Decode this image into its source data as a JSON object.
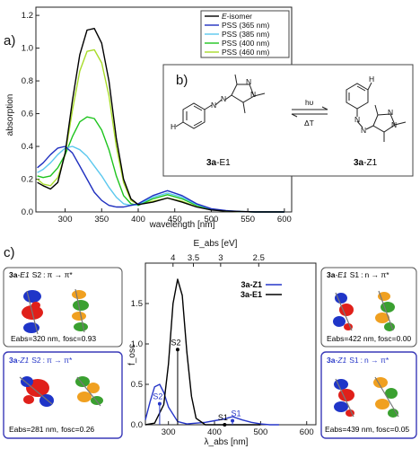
{
  "panel_a": {
    "label": "a)",
    "ylabel": "absorption",
    "xlabel": "wavelength [nm]",
    "legend_isomer_prefix": "E",
    "legend_isomer_suffix": "-isomer",
    "legend": [
      "PSS (365 nm)",
      "PSS (385 nm)",
      "PSS (400 nm)",
      "PSS (460 nm)"
    ]
  },
  "panel_b": {
    "label": "b)",
    "arrow_top": "hυ",
    "arrow_bottom": "ΔT",
    "left_name_bold": "3a",
    "left_name_rest": "-E1",
    "right_name_bold": "3a",
    "right_name_rest": "-Z1",
    "atom_h": "H",
    "atom_n": "N"
  },
  "panel_c": {
    "label": "c)",
    "top_axis_label": "E_abs [eV]",
    "top_ticks": [
      "4",
      "3.5",
      "3",
      "2.5"
    ],
    "ylabel": "f_osc",
    "xlabel": "λ_abs [nm]",
    "legend": [
      "3a-Z1",
      "3a-E1"
    ],
    "peak_labels": [
      "S2",
      "S2",
      "S1",
      "S1"
    ],
    "cards": [
      {
        "compound": "3a",
        "isomer": "-E1",
        "state": "S2",
        "transition": "π → π*",
        "energy": "Eabs=320 nm,",
        "osc": "fosc=0.93"
      },
      {
        "compound": "3a",
        "isomer": "-Z1",
        "state": "S2",
        "transition": "π → π*",
        "energy": "Eabs=281 nm,",
        "osc": "fosc=0.26"
      },
      {
        "compound": "3a",
        "isomer": "-E1",
        "state": "S1",
        "transition": "n → π*",
        "energy": "Eabs=422 nm,",
        "osc": "fosc=0.00"
      },
      {
        "compound": "3a",
        "isomer": "-Z1",
        "state": "S1",
        "transition": "n → π*",
        "energy": "Eabs=439 nm,",
        "osc": "fosc=0.05"
      }
    ]
  },
  "colors": {
    "E": "#000000",
    "pss365": "#1f2fbf",
    "pss385": "#5bc8ee",
    "pss400": "#1ec41e",
    "pss460": "#a8dc2a",
    "Z": "#2636c8"
  },
  "chart_data": [
    {
      "type": "line",
      "xlabel": "wavelength [nm]",
      "ylabel": "absorption",
      "xlim": [
        260,
        610
      ],
      "ylim": [
        0,
        1.25
      ],
      "x_ticks": [
        300,
        350,
        400,
        450,
        500,
        550,
        600
      ],
      "y_ticks": [
        0.0,
        0.2,
        0.4,
        0.6,
        0.8,
        1.0,
        1.2
      ],
      "legend_position": "top-right",
      "series": [
        {
          "name": "E-isomer",
          "color": "#000000",
          "x": [
            262,
            270,
            280,
            290,
            300,
            310,
            320,
            330,
            340,
            350,
            360,
            370,
            380,
            390,
            400,
            420,
            440,
            460,
            480,
            500,
            520,
            540,
            560,
            580,
            600
          ],
          "y": [
            0.18,
            0.16,
            0.14,
            0.18,
            0.36,
            0.68,
            0.96,
            1.11,
            1.12,
            1.03,
            0.8,
            0.45,
            0.2,
            0.08,
            0.045,
            0.06,
            0.085,
            0.06,
            0.03,
            0.012,
            0.005,
            0.002,
            0.0,
            0.0,
            0.0
          ]
        },
        {
          "name": "PSS (365 nm)",
          "color": "#1f2fbf",
          "x": [
            262,
            270,
            280,
            290,
            300,
            310,
            320,
            330,
            340,
            350,
            360,
            370,
            380,
            390,
            400,
            420,
            440,
            460,
            480,
            500,
            520,
            540,
            560,
            580,
            600
          ],
          "y": [
            0.27,
            0.3,
            0.35,
            0.39,
            0.4,
            0.36,
            0.28,
            0.2,
            0.12,
            0.07,
            0.04,
            0.03,
            0.03,
            0.04,
            0.05,
            0.1,
            0.13,
            0.1,
            0.05,
            0.02,
            0.008,
            0.003,
            0.0,
            0.0,
            0.0
          ]
        },
        {
          "name": "PSS (385 nm)",
          "color": "#5bc8ee",
          "x": [
            262,
            270,
            280,
            290,
            300,
            310,
            320,
            330,
            340,
            350,
            360,
            370,
            380,
            390,
            400,
            420,
            440,
            460,
            480,
            500,
            520,
            540,
            560,
            580,
            600
          ],
          "y": [
            0.24,
            0.26,
            0.3,
            0.35,
            0.39,
            0.4,
            0.38,
            0.34,
            0.28,
            0.22,
            0.15,
            0.09,
            0.05,
            0.04,
            0.045,
            0.09,
            0.115,
            0.09,
            0.045,
            0.018,
            0.007,
            0.002,
            0.0,
            0.0,
            0.0
          ]
        },
        {
          "name": "PSS (400 nm)",
          "color": "#1ec41e",
          "x": [
            262,
            270,
            280,
            290,
            300,
            310,
            320,
            330,
            340,
            350,
            360,
            370,
            380,
            390,
            400,
            420,
            440,
            460,
            480,
            500,
            520,
            540,
            560,
            580,
            600
          ],
          "y": [
            0.22,
            0.21,
            0.22,
            0.27,
            0.35,
            0.46,
            0.55,
            0.58,
            0.57,
            0.5,
            0.38,
            0.22,
            0.1,
            0.05,
            0.04,
            0.08,
            0.105,
            0.08,
            0.04,
            0.016,
            0.006,
            0.002,
            0.0,
            0.0,
            0.0
          ]
        },
        {
          "name": "PSS (460 nm)",
          "color": "#a8dc2a",
          "x": [
            262,
            270,
            280,
            290,
            300,
            310,
            320,
            330,
            340,
            350,
            360,
            370,
            380,
            390,
            400,
            420,
            440,
            460,
            480,
            500,
            520,
            540,
            560,
            580,
            600
          ],
          "y": [
            0.2,
            0.17,
            0.16,
            0.21,
            0.35,
            0.62,
            0.86,
            0.98,
            0.99,
            0.91,
            0.71,
            0.4,
            0.18,
            0.07,
            0.045,
            0.065,
            0.085,
            0.065,
            0.032,
            0.013,
            0.005,
            0.002,
            0.0,
            0.0,
            0.0
          ]
        }
      ]
    },
    {
      "type": "line",
      "xlabel": "λ_abs [nm]",
      "ylabel": "f_osc",
      "xlim": [
        250,
        620
      ],
      "ylim": [
        0,
        2.0
      ],
      "x_ticks": [
        300,
        400,
        500,
        600
      ],
      "y_ticks": [
        0.0,
        0.5,
        1.0,
        1.5
      ],
      "top_axis": {
        "label": "E_abs [eV]",
        "ticks": [
          4,
          3.5,
          3,
          2.5
        ]
      },
      "legend_position": "top-right",
      "series": [
        {
          "name": "3a-Z1",
          "color": "#2636c8",
          "x": [
            250,
            260,
            270,
            281,
            290,
            300,
            320,
            340,
            360,
            380,
            400,
            420,
            439,
            460,
            480,
            500,
            520,
            540
          ],
          "y": [
            0.06,
            0.28,
            0.47,
            0.5,
            0.4,
            0.22,
            0.04,
            0.01,
            0.02,
            0.03,
            0.05,
            0.07,
            0.1,
            0.06,
            0.03,
            0.01,
            0.0,
            0.0
          ]
        },
        {
          "name": "3a-E1",
          "color": "#000000",
          "x": [
            250,
            270,
            290,
            300,
            310,
            320,
            330,
            340,
            350,
            360,
            380,
            400,
            422,
            440,
            460,
            500
          ],
          "y": [
            0.0,
            0.02,
            0.25,
            0.75,
            1.5,
            1.8,
            1.6,
            0.9,
            0.35,
            0.08,
            0.0,
            0.0,
            0.0,
            0.0,
            0.0,
            0.0
          ]
        }
      ],
      "sticks": [
        {
          "series": "3a-E1",
          "x": 320,
          "y": 0.93,
          "label": "S2"
        },
        {
          "series": "3a-Z1",
          "x": 281,
          "y": 0.26,
          "label": "S2"
        },
        {
          "series": "3a-E1",
          "x": 422,
          "y": 0.0,
          "label": "S1"
        },
        {
          "series": "3a-Z1",
          "x": 439,
          "y": 0.05,
          "label": "S1"
        }
      ]
    }
  ]
}
